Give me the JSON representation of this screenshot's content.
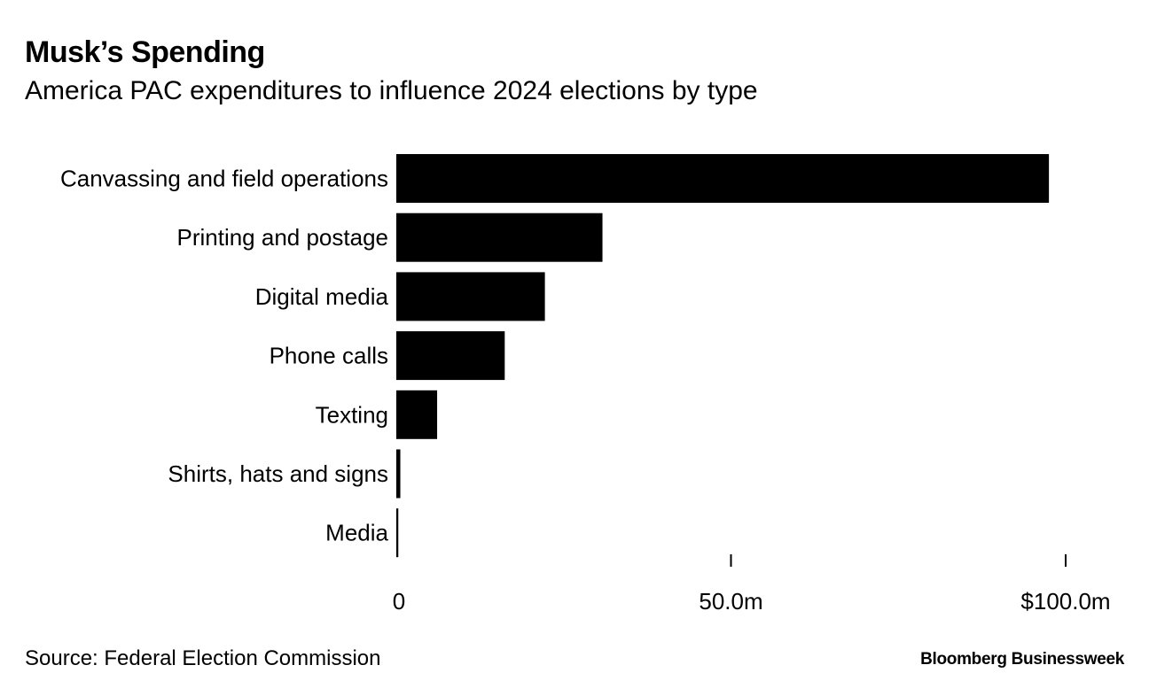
{
  "chart_data": {
    "type": "bar",
    "orientation": "horizontal",
    "title": "Musk’s Spending",
    "subtitle": "America PAC expenditures to influence 2024 elections by type",
    "categories": [
      "Canvassing and field operations",
      "Printing and postage",
      "Digital media",
      "Phone calls",
      "Texting",
      "Shirts, hats and signs",
      "Media"
    ],
    "values": [
      97.5,
      30.8,
      22.2,
      16.2,
      6.1,
      0.6,
      0.3
    ],
    "unit": "millions of dollars",
    "xlim": [
      0,
      100
    ],
    "ticks": [
      {
        "value": 0,
        "label": "0"
      },
      {
        "value": 50,
        "label": "50.0m"
      },
      {
        "value": 100,
        "label": "$100.0m"
      }
    ],
    "bar_color": "#000000",
    "grid": false,
    "legend": "none"
  },
  "footer": {
    "source": "Source: Federal Election Commission",
    "brand": "Bloomberg Businessweek"
  }
}
